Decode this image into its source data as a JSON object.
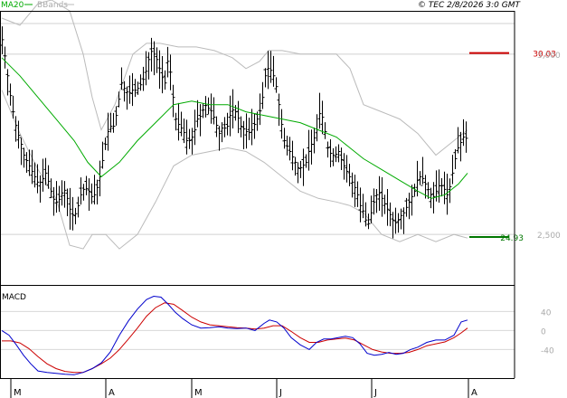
{
  "header": {
    "legend_ma": "MA20",
    "legend_bb": "BBands",
    "copyright": "© TEC 2/8/2026 3:0 GMT"
  },
  "colors": {
    "ma": "#00aa00",
    "bands": "#bbbbbb",
    "candles": "#000000",
    "macd": "#0000cc",
    "signal": "#cc0000",
    "resistance": "#cc0000",
    "support": "#007700"
  },
  "chart_data": [
    {
      "type": "line",
      "name": "price",
      "x_labels": [
        "M",
        "A",
        "M",
        "J",
        "J",
        "A"
      ],
      "ylim": [
        2360,
        3120
      ],
      "y_ticks": [
        2500,
        3000
      ],
      "levels": [
        {
          "label": "30.03",
          "value": 3003,
          "kind": "resistance"
        },
        {
          "label": "24.93",
          "value": 2493,
          "kind": "support"
        }
      ],
      "close_path": [
        [
          0,
          3040
        ],
        [
          4,
          2980
        ],
        [
          8,
          2900
        ],
        [
          12,
          2840
        ],
        [
          16,
          2790
        ],
        [
          20,
          2760
        ],
        [
          24,
          2720
        ],
        [
          28,
          2700
        ],
        [
          32,
          2680
        ],
        [
          36,
          2660
        ],
        [
          40,
          2640
        ],
        [
          44,
          2650
        ],
        [
          48,
          2670
        ],
        [
          52,
          2640
        ],
        [
          56,
          2600
        ],
        [
          60,
          2590
        ],
        [
          64,
          2600
        ],
        [
          68,
          2630
        ],
        [
          72,
          2600
        ],
        [
          76,
          2560
        ],
        [
          80,
          2550
        ],
        [
          84,
          2580
        ],
        [
          88,
          2620
        ],
        [
          92,
          2630
        ],
        [
          96,
          2620
        ],
        [
          100,
          2600
        ],
        [
          104,
          2620
        ],
        [
          108,
          2660
        ],
        [
          112,
          2720
        ],
        [
          116,
          2780
        ],
        [
          120,
          2800
        ],
        [
          124,
          2800
        ],
        [
          128,
          2860
        ],
        [
          132,
          2920
        ],
        [
          136,
          2900
        ],
        [
          140,
          2890
        ],
        [
          144,
          2900
        ],
        [
          148,
          2900
        ],
        [
          152,
          2910
        ],
        [
          156,
          2930
        ],
        [
          160,
          2960
        ],
        [
          164,
          3010
        ],
        [
          168,
          3000
        ],
        [
          172,
          2980
        ],
        [
          176,
          2940
        ],
        [
          180,
          2920
        ],
        [
          184,
          3000
        ],
        [
          188,
          2900
        ],
        [
          192,
          2820
        ],
        [
          196,
          2800
        ],
        [
          200,
          2790
        ],
        [
          204,
          2760
        ],
        [
          208,
          2760
        ],
        [
          212,
          2780
        ],
        [
          216,
          2820
        ],
        [
          220,
          2830
        ],
        [
          224,
          2860
        ],
        [
          228,
          2850
        ],
        [
          232,
          2840
        ],
        [
          236,
          2810
        ],
        [
          240,
          2780
        ],
        [
          244,
          2800
        ],
        [
          248,
          2790
        ],
        [
          252,
          2830
        ],
        [
          256,
          2850
        ],
        [
          260,
          2830
        ],
        [
          264,
          2800
        ],
        [
          268,
          2790
        ],
        [
          272,
          2780
        ],
        [
          276,
          2790
        ],
        [
          280,
          2810
        ],
        [
          284,
          2830
        ],
        [
          288,
          2880
        ],
        [
          292,
          2960
        ],
        [
          296,
          2960
        ],
        [
          300,
          2940
        ],
        [
          304,
          2900
        ],
        [
          308,
          2820
        ],
        [
          312,
          2760
        ],
        [
          316,
          2740
        ],
        [
          320,
          2720
        ],
        [
          324,
          2700
        ],
        [
          328,
          2680
        ],
        [
          332,
          2690
        ],
        [
          336,
          2700
        ],
        [
          340,
          2740
        ],
        [
          344,
          2760
        ],
        [
          348,
          2790
        ],
        [
          352,
          2850
        ],
        [
          356,
          2800
        ],
        [
          360,
          2740
        ],
        [
          364,
          2720
        ],
        [
          368,
          2720
        ],
        [
          372,
          2730
        ],
        [
          376,
          2700
        ],
        [
          380,
          2680
        ],
        [
          384,
          2660
        ],
        [
          388,
          2640
        ],
        [
          392,
          2620
        ],
        [
          396,
          2580
        ],
        [
          400,
          2560
        ],
        [
          404,
          2520
        ],
        [
          408,
          2560
        ],
        [
          412,
          2600
        ],
        [
          416,
          2620
        ],
        [
          420,
          2600
        ],
        [
          424,
          2580
        ],
        [
          428,
          2560
        ],
        [
          432,
          2540
        ],
        [
          436,
          2530
        ],
        [
          440,
          2550
        ],
        [
          444,
          2560
        ],
        [
          448,
          2580
        ],
        [
          452,
          2600
        ],
        [
          456,
          2620
        ],
        [
          460,
          2660
        ],
        [
          464,
          2660
        ],
        [
          468,
          2640
        ],
        [
          472,
          2620
        ],
        [
          476,
          2600
        ],
        [
          480,
          2620
        ],
        [
          484,
          2640
        ],
        [
          488,
          2630
        ],
        [
          492,
          2610
        ],
        [
          496,
          2640
        ],
        [
          500,
          2700
        ],
        [
          504,
          2740
        ],
        [
          508,
          2760
        ],
        [
          512,
          2780
        ],
        [
          515,
          2740
        ]
      ],
      "ma20_path": [
        [
          0,
          2990
        ],
        [
          20,
          2940
        ],
        [
          40,
          2880
        ],
        [
          60,
          2820
        ],
        [
          80,
          2760
        ],
        [
          95,
          2700
        ],
        [
          110,
          2660
        ],
        [
          130,
          2700
        ],
        [
          150,
          2760
        ],
        [
          170,
          2810
        ],
        [
          190,
          2860
        ],
        [
          210,
          2870
        ],
        [
          230,
          2860
        ],
        [
          250,
          2860
        ],
        [
          270,
          2840
        ],
        [
          290,
          2830
        ],
        [
          310,
          2820
        ],
        [
          330,
          2810
        ],
        [
          350,
          2790
        ],
        [
          370,
          2770
        ],
        [
          385,
          2740
        ],
        [
          400,
          2710
        ],
        [
          420,
          2680
        ],
        [
          440,
          2650
        ],
        [
          460,
          2620
        ],
        [
          475,
          2600
        ],
        [
          490,
          2610
        ],
        [
          505,
          2640
        ],
        [
          515,
          2670
        ]
      ],
      "upper_band_path": [
        [
          0,
          3100
        ],
        [
          20,
          3080
        ],
        [
          40,
          3140
        ],
        [
          55,
          3150
        ],
        [
          75,
          3120
        ],
        [
          90,
          3000
        ],
        [
          100,
          2880
        ],
        [
          110,
          2790
        ],
        [
          125,
          2860
        ],
        [
          145,
          3000
        ],
        [
          160,
          3030
        ],
        [
          175,
          3030
        ],
        [
          195,
          3020
        ],
        [
          215,
          3020
        ],
        [
          235,
          3010
        ],
        [
          255,
          2990
        ],
        [
          270,
          2960
        ],
        [
          285,
          2980
        ],
        [
          295,
          3010
        ],
        [
          310,
          3010
        ],
        [
          330,
          3000
        ],
        [
          350,
          3000
        ],
        [
          370,
          3000
        ],
        [
          385,
          2960
        ],
        [
          400,
          2860
        ],
        [
          420,
          2840
        ],
        [
          440,
          2820
        ],
        [
          460,
          2780
        ],
        [
          480,
          2720
        ],
        [
          500,
          2760
        ],
        [
          515,
          2790
        ]
      ],
      "lower_band_path": [
        [
          0,
          2900
        ],
        [
          20,
          2780
        ],
        [
          40,
          2680
        ],
        [
          60,
          2600
        ],
        [
          75,
          2470
        ],
        [
          90,
          2460
        ],
        [
          100,
          2500
        ],
        [
          115,
          2500
        ],
        [
          130,
          2460
        ],
        [
          150,
          2500
        ],
        [
          170,
          2590
        ],
        [
          190,
          2690
        ],
        [
          210,
          2720
        ],
        [
          230,
          2730
        ],
        [
          250,
          2740
        ],
        [
          270,
          2730
        ],
        [
          290,
          2700
        ],
        [
          310,
          2660
        ],
        [
          330,
          2620
        ],
        [
          350,
          2600
        ],
        [
          370,
          2590
        ],
        [
          385,
          2580
        ],
        [
          400,
          2560
        ],
        [
          420,
          2500
        ],
        [
          440,
          2480
        ],
        [
          460,
          2500
        ],
        [
          480,
          2480
        ],
        [
          500,
          2500
        ],
        [
          515,
          2490
        ]
      ]
    },
    {
      "type": "line",
      "name": "MACD",
      "title": "MACD",
      "ylim": [
        -100,
        90
      ],
      "y_ticks": [
        40,
        0,
        -40
      ],
      "y_tick_labels": [
        "40",
        "0",
        "-40"
      ],
      "series": [
        {
          "name": "MACD",
          "points": [
            [
              0,
              0
            ],
            [
              8,
              -10
            ],
            [
              16,
              -30
            ],
            [
              24,
              -52
            ],
            [
              32,
              -70
            ],
            [
              40,
              -85
            ],
            [
              50,
              -88
            ],
            [
              60,
              -90
            ],
            [
              70,
              -92
            ],
            [
              80,
              -93
            ],
            [
              90,
              -88
            ],
            [
              100,
              -80
            ],
            [
              110,
              -68
            ],
            [
              120,
              -45
            ],
            [
              130,
              -10
            ],
            [
              140,
              20
            ],
            [
              150,
              45
            ],
            [
              160,
              65
            ],
            [
              168,
              72
            ],
            [
              176,
              70
            ],
            [
              184,
              55
            ],
            [
              192,
              38
            ],
            [
              200,
              25
            ],
            [
              210,
              12
            ],
            [
              220,
              5
            ],
            [
              230,
              6
            ],
            [
              240,
              8
            ],
            [
              250,
              5
            ],
            [
              260,
              4
            ],
            [
              270,
              5
            ],
            [
              280,
              0
            ],
            [
              290,
              15
            ],
            [
              296,
              22
            ],
            [
              304,
              18
            ],
            [
              312,
              5
            ],
            [
              320,
              -15
            ],
            [
              330,
              -30
            ],
            [
              340,
              -40
            ],
            [
              348,
              -25
            ],
            [
              356,
              -18
            ],
            [
              364,
              -18
            ],
            [
              372,
              -15
            ],
            [
              380,
              -12
            ],
            [
              388,
              -15
            ],
            [
              396,
              -28
            ],
            [
              404,
              -48
            ],
            [
              412,
              -52
            ],
            [
              420,
              -50
            ],
            [
              428,
              -46
            ],
            [
              436,
              -50
            ],
            [
              444,
              -48
            ],
            [
              452,
              -40
            ],
            [
              460,
              -35
            ],
            [
              470,
              -25
            ],
            [
              480,
              -20
            ],
            [
              490,
              -20
            ],
            [
              500,
              -10
            ],
            [
              508,
              18
            ],
            [
              515,
              22
            ]
          ]
        },
        {
          "name": "Signal",
          "points": [
            [
              0,
              -22
            ],
            [
              10,
              -22
            ],
            [
              20,
              -26
            ],
            [
              30,
              -38
            ],
            [
              40,
              -55
            ],
            [
              50,
              -70
            ],
            [
              60,
              -80
            ],
            [
              70,
              -86
            ],
            [
              80,
              -88
            ],
            [
              90,
              -88
            ],
            [
              100,
              -80
            ],
            [
              110,
              -70
            ],
            [
              120,
              -58
            ],
            [
              130,
              -40
            ],
            [
              140,
              -18
            ],
            [
              150,
              5
            ],
            [
              160,
              30
            ],
            [
              170,
              48
            ],
            [
              180,
              58
            ],
            [
              190,
              55
            ],
            [
              200,
              42
            ],
            [
              210,
              28
            ],
            [
              220,
              18
            ],
            [
              230,
              12
            ],
            [
              240,
              10
            ],
            [
              250,
              8
            ],
            [
              260,
              6
            ],
            [
              270,
              5
            ],
            [
              280,
              3
            ],
            [
              290,
              5
            ],
            [
              300,
              10
            ],
            [
              310,
              10
            ],
            [
              320,
              -2
            ],
            [
              330,
              -15
            ],
            [
              340,
              -25
            ],
            [
              350,
              -25
            ],
            [
              360,
              -20
            ],
            [
              370,
              -18
            ],
            [
              380,
              -16
            ],
            [
              390,
              -20
            ],
            [
              400,
              -30
            ],
            [
              410,
              -40
            ],
            [
              420,
              -45
            ],
            [
              430,
              -48
            ],
            [
              440,
              -48
            ],
            [
              450,
              -46
            ],
            [
              460,
              -40
            ],
            [
              470,
              -32
            ],
            [
              480,
              -28
            ],
            [
              490,
              -24
            ],
            [
              500,
              -15
            ],
            [
              508,
              -5
            ],
            [
              515,
              5
            ]
          ]
        }
      ]
    }
  ]
}
